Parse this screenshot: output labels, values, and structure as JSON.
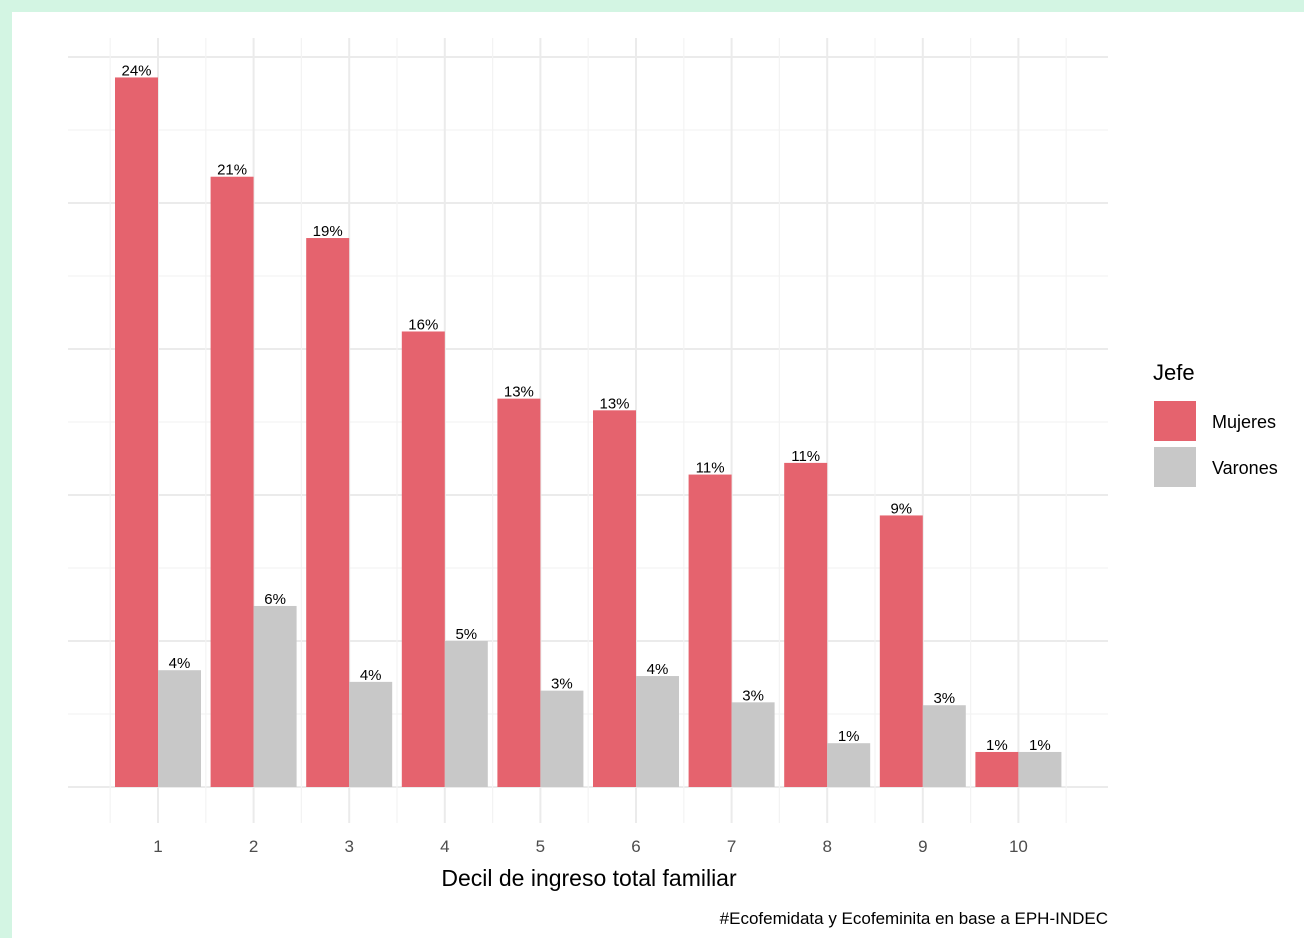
{
  "chart_data": {
    "type": "bar",
    "categories": [
      "1",
      "2",
      "3",
      "4",
      "5",
      "6",
      "7",
      "8",
      "9",
      "10"
    ],
    "series": [
      {
        "name": "Mujeres",
        "color": "#e5636e",
        "values": [
          24,
          21,
          19,
          16,
          13,
          13,
          11,
          11,
          9,
          1
        ],
        "labels": [
          "24%",
          "21%",
          "19%",
          "16%",
          "13%",
          "13%",
          "11%",
          "11%",
          "9%",
          "1%"
        ],
        "plot_values": [
          24.3,
          20.9,
          18.8,
          15.6,
          13.3,
          12.9,
          10.7,
          11.1,
          9.3,
          1.2
        ]
      },
      {
        "name": "Varones",
        "color": "#c8c8c8",
        "values": [
          4,
          6,
          4,
          5,
          3,
          4,
          3,
          1,
          3,
          1
        ],
        "labels": [
          "4%",
          "6%",
          "4%",
          "5%",
          "3%",
          "4%",
          "3%",
          "1%",
          "3%",
          "1%"
        ],
        "plot_values": [
          4.0,
          6.2,
          3.6,
          5.0,
          3.3,
          3.8,
          2.9,
          1.5,
          2.8,
          1.2
        ]
      }
    ],
    "xlabel": "Decil de ingreso total familiar",
    "ylabel": "",
    "ylim": [
      0,
      25
    ],
    "grid": true,
    "legend": {
      "title": "Jefe",
      "position": "right"
    },
    "caption": "#Ecofemidata y Ecofeminita en base a EPH-INDEC"
  }
}
